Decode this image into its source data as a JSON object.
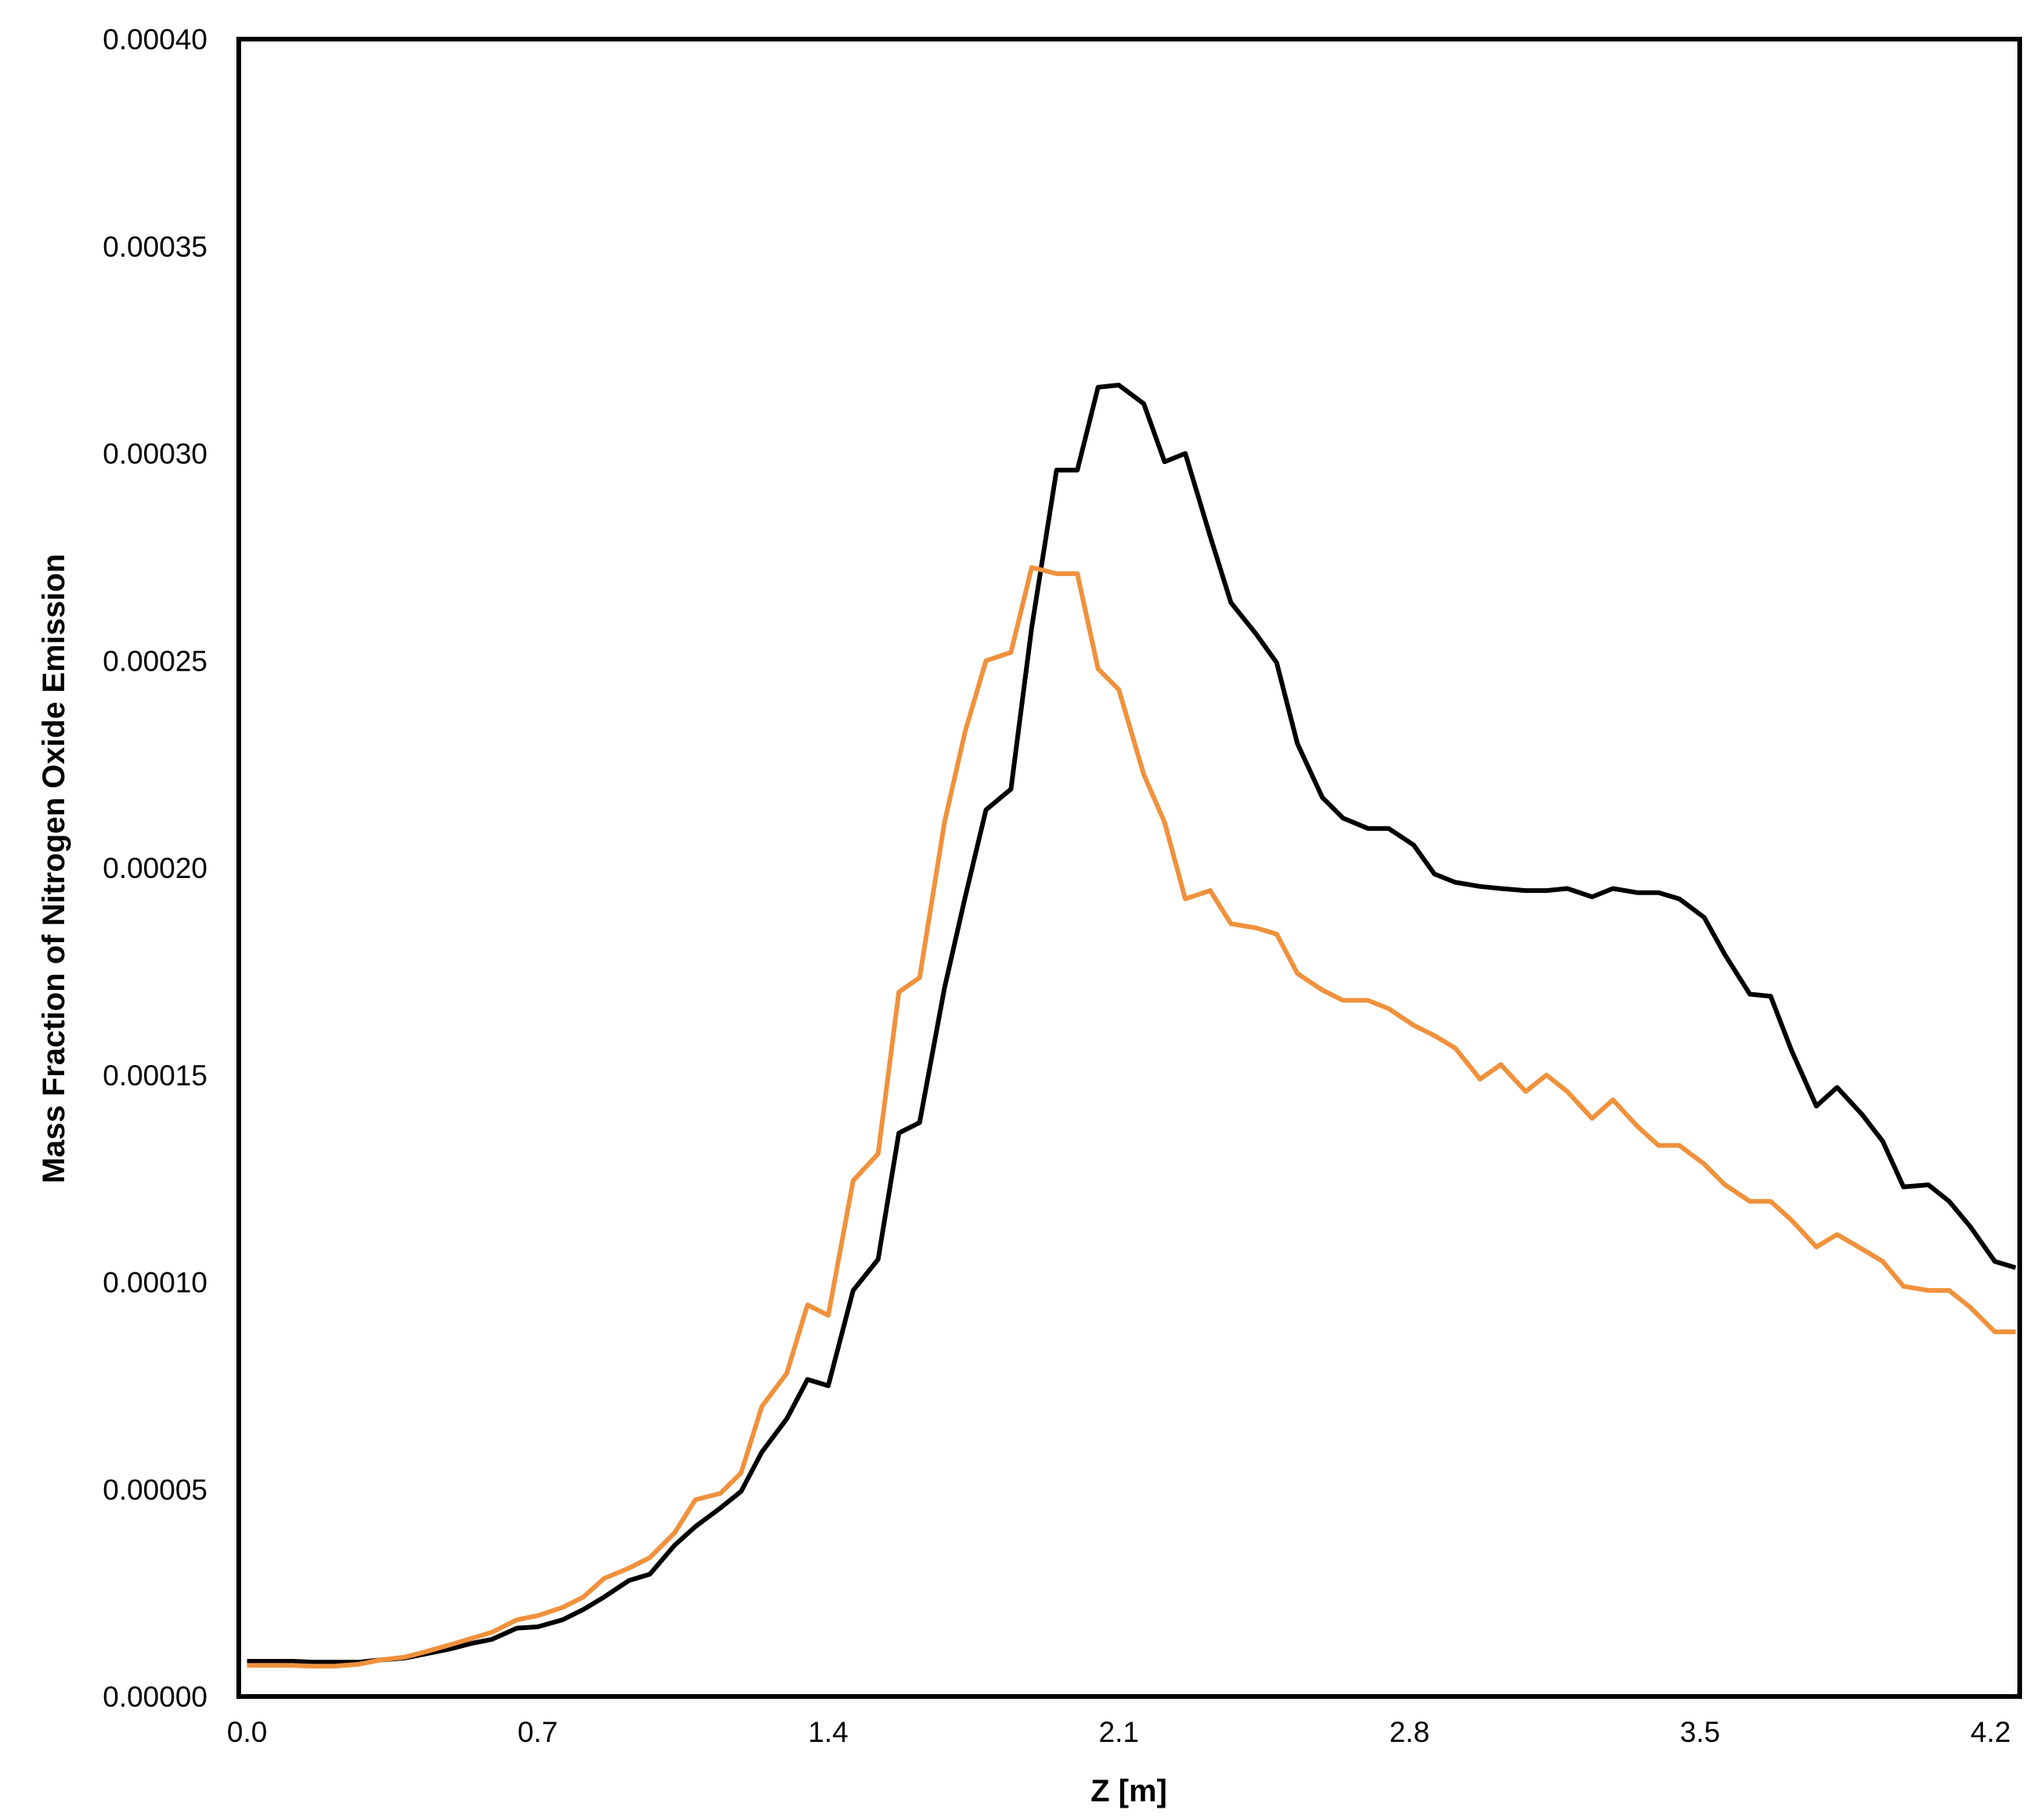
{
  "chart_data": {
    "type": "line",
    "title": "",
    "xlabel": "Z [m]",
    "ylabel": "Mass Fraction of Nitrogen Oxide Emission",
    "xlim": [
      -0.02,
      4.27
    ],
    "ylim": [
      0,
      0.0004
    ],
    "x_ticks": [
      "0.0",
      "0.7",
      "1.4",
      "2.1",
      "2.8",
      "3.5",
      "4.2"
    ],
    "y_ticks": [
      "0.00000",
      "0.00005",
      "0.00010",
      "0.00015",
      "0.00020",
      "0.00025",
      "0.00030",
      "0.00035",
      "0.00040"
    ],
    "grid": false,
    "legend": "none",
    "series": [
      {
        "color": "#000000",
        "points": [
          [
            0.0,
            8.5e-06
          ],
          [
            0.05,
            8.5e-06
          ],
          [
            0.11,
            8.5e-06
          ],
          [
            0.16,
            8.3e-06
          ],
          [
            0.21,
            8.3e-06
          ],
          [
            0.27,
            8.3e-06
          ],
          [
            0.32,
            8.8e-06
          ],
          [
            0.38,
            9.3e-06
          ],
          [
            0.43,
            1.03e-05
          ],
          [
            0.49,
            1.15e-05
          ],
          [
            0.54,
            1.28e-05
          ],
          [
            0.59,
            1.38e-05
          ],
          [
            0.65,
            1.65e-05
          ],
          [
            0.7,
            1.68e-05
          ],
          [
            0.76,
            1.85e-05
          ],
          [
            0.81,
            2.1e-05
          ],
          [
            0.86,
            2.4e-05
          ],
          [
            0.92,
            2.8e-05
          ],
          [
            0.97,
            2.95e-05
          ],
          [
            1.03,
            3.65e-05
          ],
          [
            1.08,
            4.1e-05
          ],
          [
            1.14,
            4.55e-05
          ],
          [
            1.19,
            4.95e-05
          ],
          [
            1.24,
            5.9e-05
          ],
          [
            1.3,
            6.7e-05
          ],
          [
            1.35,
            7.65e-05
          ],
          [
            1.4,
            7.5e-05
          ],
          [
            1.46,
            9.8e-05
          ],
          [
            1.52,
            0.0001055
          ],
          [
            1.57,
            0.000136
          ],
          [
            1.62,
            0.0001385
          ],
          [
            1.68,
            0.000171
          ],
          [
            1.73,
            0.000193
          ],
          [
            1.78,
            0.000214
          ],
          [
            1.84,
            0.000219
          ],
          [
            1.89,
            0.000258
          ],
          [
            1.95,
            0.000296
          ],
          [
            2.0,
            0.000296
          ],
          [
            2.05,
            0.000316
          ],
          [
            2.1,
            0.0003165
          ],
          [
            2.16,
            0.000312
          ],
          [
            2.21,
            0.000298
          ],
          [
            2.26,
            0.0003
          ],
          [
            2.32,
            0.00028
          ],
          [
            2.37,
            0.000264
          ],
          [
            2.43,
            0.0002565
          ],
          [
            2.48,
            0.0002495
          ],
          [
            2.53,
            0.00023
          ],
          [
            2.59,
            0.000217
          ],
          [
            2.64,
            0.000212
          ],
          [
            2.7,
            0.0002095
          ],
          [
            2.75,
            0.0002095
          ],
          [
            2.81,
            0.0002055
          ],
          [
            2.86,
            0.0001985
          ],
          [
            2.91,
            0.0001965
          ],
          [
            2.97,
            0.0001955
          ],
          [
            3.02,
            0.000195
          ],
          [
            3.08,
            0.0001945
          ],
          [
            3.13,
            0.0001945
          ],
          [
            3.18,
            0.000195
          ],
          [
            3.24,
            0.000193
          ],
          [
            3.29,
            0.000195
          ],
          [
            3.35,
            0.000194
          ],
          [
            3.4,
            0.000194
          ],
          [
            3.45,
            0.0001925
          ],
          [
            3.51,
            0.000188
          ],
          [
            3.56,
            0.000179
          ],
          [
            3.62,
            0.0001695
          ],
          [
            3.67,
            0.000169
          ],
          [
            3.72,
            0.000156
          ],
          [
            3.78,
            0.0001425
          ],
          [
            3.83,
            0.000147
          ],
          [
            3.89,
            0.0001405
          ],
          [
            3.94,
            0.000134
          ],
          [
            3.99,
            0.000123
          ],
          [
            4.05,
            0.0001235
          ],
          [
            4.1,
            0.0001195
          ],
          [
            4.15,
            0.0001135
          ],
          [
            4.21,
            0.000105
          ],
          [
            4.26,
            0.0001035
          ]
        ]
      },
      {
        "color": "#F0913C",
        "points": [
          [
            0.0,
            7.5e-06
          ],
          [
            0.05,
            7.5e-06
          ],
          [
            0.11,
            7.5e-06
          ],
          [
            0.16,
            7.3e-06
          ],
          [
            0.21,
            7.3e-06
          ],
          [
            0.27,
            7.8e-06
          ],
          [
            0.32,
            8.8e-06
          ],
          [
            0.38,
            9.5e-06
          ],
          [
            0.43,
            1.08e-05
          ],
          [
            0.49,
            1.25e-05
          ],
          [
            0.54,
            1.4e-05
          ],
          [
            0.59,
            1.55e-05
          ],
          [
            0.65,
            1.85e-05
          ],
          [
            0.7,
            1.95e-05
          ],
          [
            0.76,
            2.15e-05
          ],
          [
            0.81,
            2.4e-05
          ],
          [
            0.86,
            2.85e-05
          ],
          [
            0.92,
            3.1e-05
          ],
          [
            0.97,
            3.35e-05
          ],
          [
            1.03,
            3.95e-05
          ],
          [
            1.08,
            4.75e-05
          ],
          [
            1.14,
            4.9e-05
          ],
          [
            1.19,
            5.4e-05
          ],
          [
            1.24,
            7e-05
          ],
          [
            1.3,
            7.8e-05
          ],
          [
            1.35,
            9.45e-05
          ],
          [
            1.4,
            9.2e-05
          ],
          [
            1.46,
            0.0001245
          ],
          [
            1.52,
            0.000131
          ],
          [
            1.57,
            0.00017
          ],
          [
            1.62,
            0.0001735
          ],
          [
            1.68,
            0.000211
          ],
          [
            1.73,
            0.000233
          ],
          [
            1.78,
            0.00025
          ],
          [
            1.84,
            0.000252
          ],
          [
            1.89,
            0.0002725
          ],
          [
            1.95,
            0.000271
          ],
          [
            2.0,
            0.000271
          ],
          [
            2.05,
            0.000248
          ],
          [
            2.1,
            0.000243
          ],
          [
            2.16,
            0.0002225
          ],
          [
            2.21,
            0.000211
          ],
          [
            2.26,
            0.0001925
          ],
          [
            2.32,
            0.0001945
          ],
          [
            2.37,
            0.0001865
          ],
          [
            2.43,
            0.0001855
          ],
          [
            2.48,
            0.000184
          ],
          [
            2.53,
            0.0001745
          ],
          [
            2.59,
            0.0001705
          ],
          [
            2.64,
            0.000168
          ],
          [
            2.7,
            0.000168
          ],
          [
            2.75,
            0.000166
          ],
          [
            2.81,
            0.000162
          ],
          [
            2.86,
            0.0001595
          ],
          [
            2.91,
            0.0001565
          ],
          [
            2.97,
            0.000149
          ],
          [
            3.02,
            0.0001525
          ],
          [
            3.08,
            0.000146
          ],
          [
            3.13,
            0.00015
          ],
          [
            3.18,
            0.000146
          ],
          [
            3.24,
            0.0001395
          ],
          [
            3.29,
            0.000144
          ],
          [
            3.35,
            0.0001375
          ],
          [
            3.4,
            0.000133
          ],
          [
            3.45,
            0.000133
          ],
          [
            3.51,
            0.0001285
          ],
          [
            3.56,
            0.0001235
          ],
          [
            3.62,
            0.0001195
          ],
          [
            3.67,
            0.0001195
          ],
          [
            3.72,
            0.000115
          ],
          [
            3.78,
            0.0001085
          ],
          [
            3.83,
            0.0001115
          ],
          [
            3.89,
            0.000108
          ],
          [
            3.94,
            0.000105
          ],
          [
            3.99,
            9.9e-05
          ],
          [
            4.05,
            9.8e-05
          ],
          [
            4.1,
            9.8e-05
          ],
          [
            4.15,
            9.4e-05
          ],
          [
            4.21,
            8.8e-05
          ],
          [
            4.26,
            8.8e-05
          ]
        ]
      }
    ]
  }
}
